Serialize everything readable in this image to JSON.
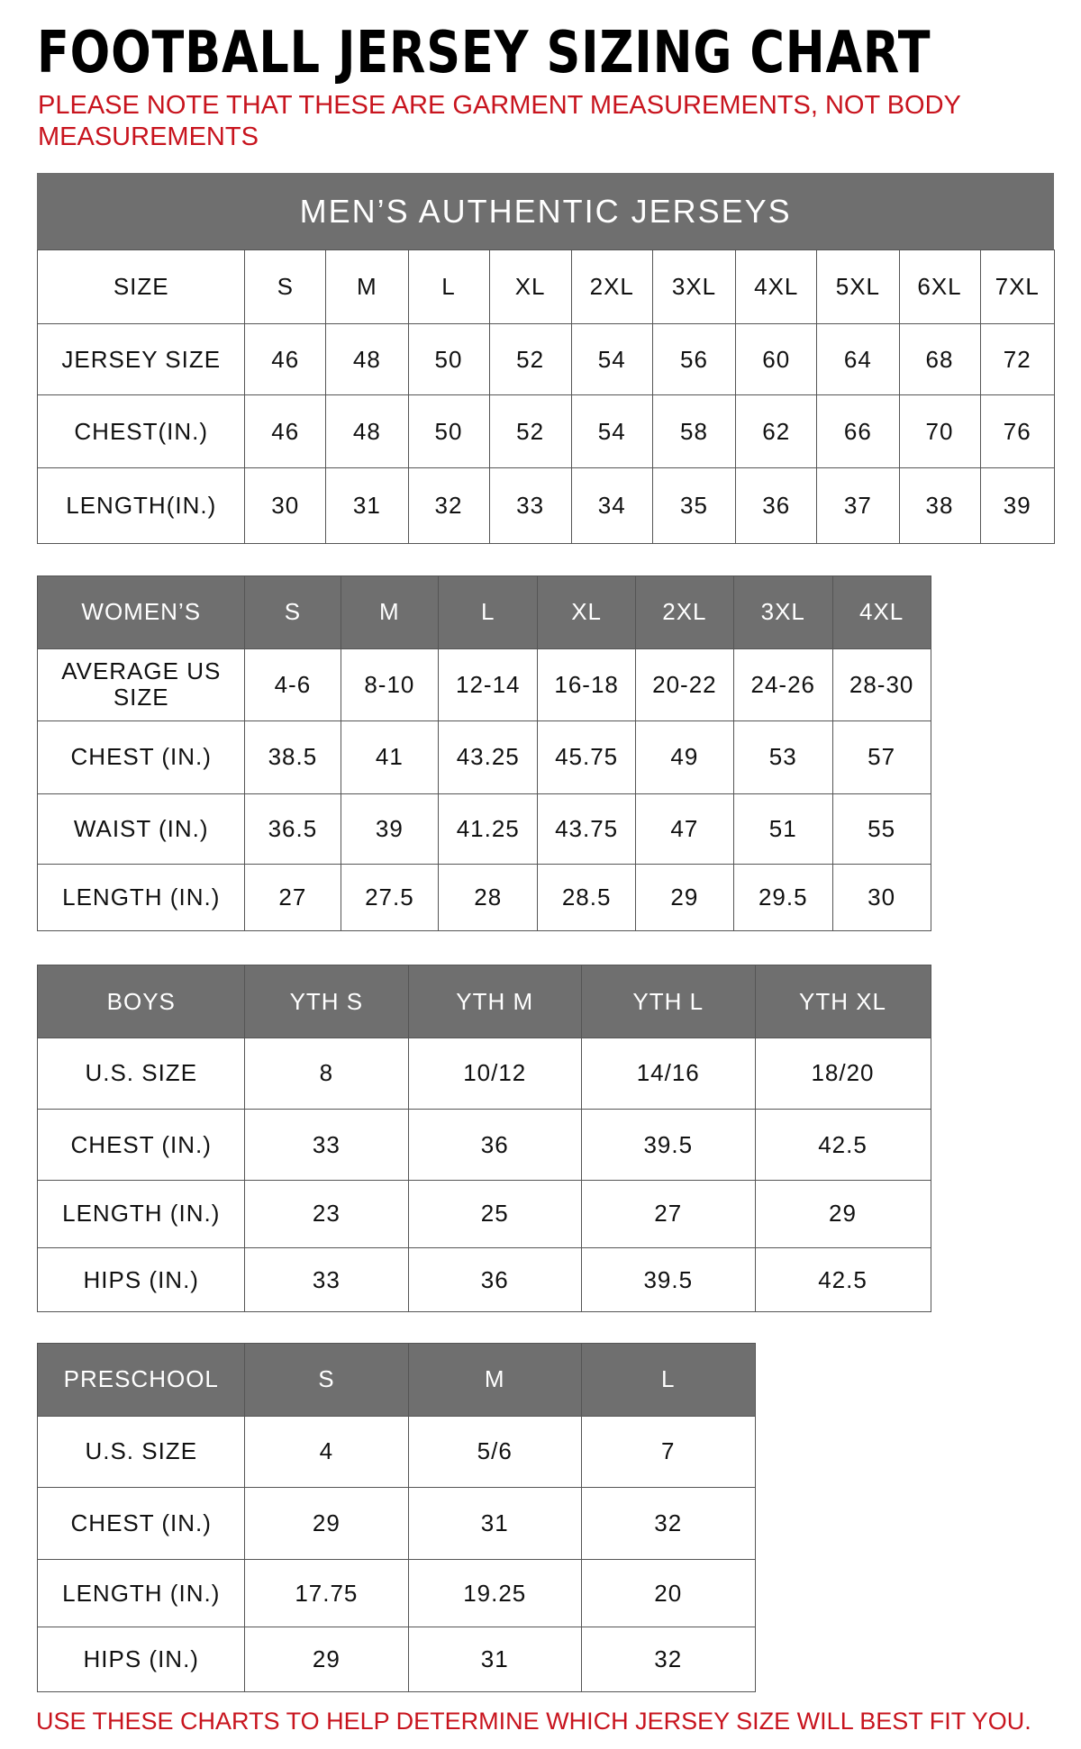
{
  "header": {
    "title": "FOOTBALL JERSEY SIZING CHART",
    "note": "PLEASE NOTE THAT THESE ARE GARMENT MEASUREMENTS, NOT BODY MEASUREMENTS"
  },
  "tables": [
    {
      "title": "MEN’S AUTHENTIC JERSEYS",
      "rows": [
        [
          "SIZE",
          "S",
          "M",
          "L",
          "XL",
          "2XL",
          "3XL",
          "4XL",
          "5XL",
          "6XL",
          "7XL"
        ],
        [
          "JERSEY SIZE",
          "46",
          "48",
          "50",
          "52",
          "54",
          "56",
          "60",
          "64",
          "68",
          "72"
        ],
        [
          "CHEST(IN.)",
          "46",
          "48",
          "50",
          "52",
          "54",
          "58",
          "62",
          "66",
          "70",
          "76"
        ],
        [
          "LENGTH(IN.)",
          "30",
          "31",
          "32",
          "33",
          "34",
          "35",
          "36",
          "37",
          "38",
          "39"
        ]
      ]
    },
    {
      "rows": [
        [
          "WOMEN’S",
          "S",
          "M",
          "L",
          "XL",
          "2XL",
          "3XL",
          "4XL"
        ],
        [
          "AVERAGE US SIZE",
          "4-6",
          "8-10",
          "12-14",
          "16-18",
          "20-22",
          "24-26",
          "28-30"
        ],
        [
          "CHEST (IN.)",
          "38.5",
          "41",
          "43.25",
          "45.75",
          "49",
          "53",
          "57"
        ],
        [
          "WAIST (IN.)",
          "36.5",
          "39",
          "41.25",
          "43.75",
          "47",
          "51",
          "55"
        ],
        [
          "LENGTH (IN.)",
          "27",
          "27.5",
          "28",
          "28.5",
          "29",
          "29.5",
          "30"
        ]
      ]
    },
    {
      "rows": [
        [
          "BOYS",
          "YTH S",
          "YTH M",
          "YTH L",
          "YTH XL"
        ],
        [
          "U.S. SIZE",
          "8",
          "10/12",
          "14/16",
          "18/20"
        ],
        [
          "CHEST (IN.)",
          "33",
          "36",
          "39.5",
          "42.5"
        ],
        [
          "LENGTH (IN.)",
          "23",
          "25",
          "27",
          "29"
        ],
        [
          "HIPS (IN.)",
          "33",
          "36",
          "39.5",
          "42.5"
        ]
      ]
    },
    {
      "rows": [
        [
          "PRESCHOOL",
          "S",
          "M",
          "L"
        ],
        [
          "U.S. SIZE",
          "4",
          "5/6",
          "7"
        ],
        [
          "CHEST (IN.)",
          "29",
          "31",
          "32"
        ],
        [
          "LENGTH (IN.)",
          "17.75",
          "19.25",
          "20"
        ],
        [
          "HIPS (IN.)",
          "29",
          "31",
          "32"
        ]
      ]
    }
  ],
  "footer": "USE THESE CHARTS TO HELP DETERMINE WHICH JERSEY SIZE WILL BEST FIT YOU."
}
